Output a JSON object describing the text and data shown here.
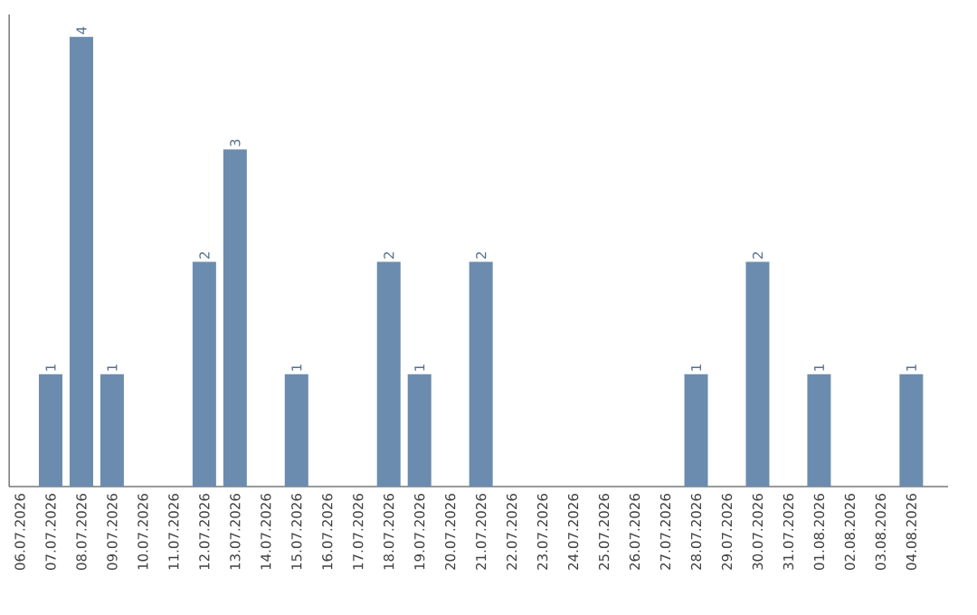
{
  "chart_data": {
    "type": "bar",
    "categories": [
      "06.07.2026",
      "07.07.2026",
      "08.07.2026",
      "09.07.2026",
      "10.07.2026",
      "11.07.2026",
      "12.07.2026",
      "13.07.2026",
      "14.07.2026",
      "15.07.2026",
      "16.07.2026",
      "17.07.2026",
      "18.07.2026",
      "19.07.2026",
      "20.07.2026",
      "21.07.2026",
      "22.07.2026",
      "23.07.2026",
      "24.07.2026",
      "25.07.2026",
      "26.07.2026",
      "27.07.2026",
      "28.07.2026",
      "29.07.2026",
      "30.07.2026",
      "31.07.2026",
      "01.08.2026",
      "02.08.2026",
      "03.08.2026",
      "04.08.2026"
    ],
    "values": [
      0,
      1,
      4,
      1,
      0,
      0,
      2,
      3,
      0,
      1,
      0,
      0,
      2,
      1,
      0,
      2,
      0,
      0,
      0,
      0,
      0,
      0,
      1,
      0,
      2,
      0,
      1,
      0,
      0,
      1
    ],
    "value_labels": [
      null,
      "1",
      "4",
      "1",
      null,
      null,
      "2",
      "3",
      null,
      "1",
      null,
      null,
      "2",
      "1",
      null,
      "2",
      null,
      null,
      null,
      null,
      null,
      null,
      "1",
      null,
      "2",
      null,
      "1",
      null,
      null,
      "1"
    ],
    "color": "#6b8cae",
    "grid": false
  }
}
